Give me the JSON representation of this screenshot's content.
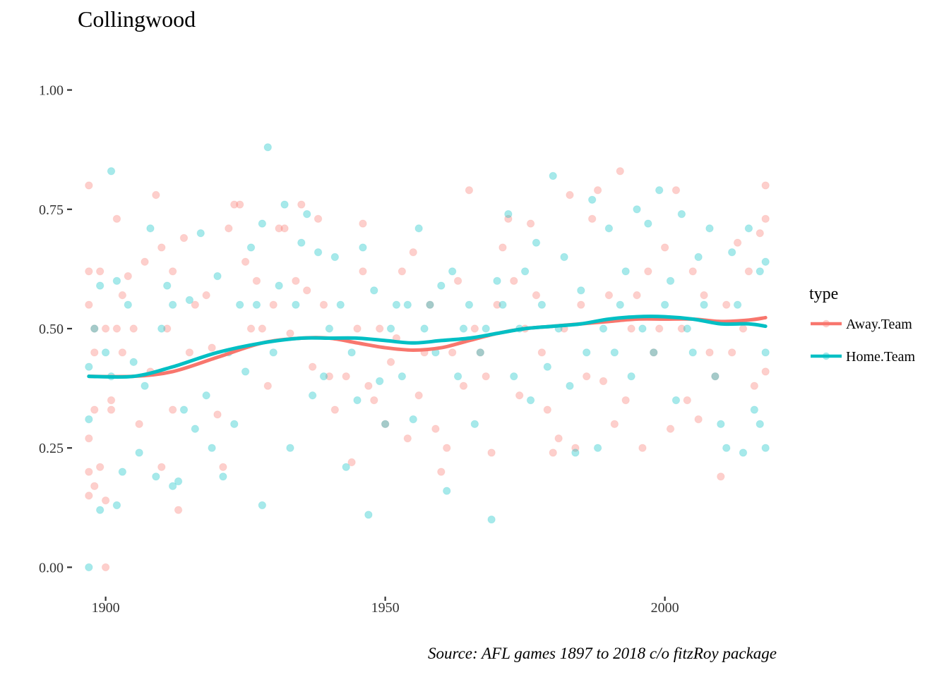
{
  "chart_data": {
    "type": "scatter",
    "title": "Collingwood",
    "caption": "Source: AFL games 1897 to 2018 c/o fitzRoy package",
    "xlabel": "",
    "ylabel": "",
    "xlim": [
      1895,
      2020
    ],
    "ylim": [
      0,
      1.0
    ],
    "x_ticks": [
      1900,
      1950,
      2000
    ],
    "x_tick_labels": [
      "1900",
      "1950",
      "2000"
    ],
    "y_ticks": [
      0,
      0.25,
      0.5,
      0.75,
      1.0
    ],
    "y_tick_labels": [
      "0.00",
      "0.25",
      "0.50",
      "0.75",
      "1.00"
    ],
    "grid": false,
    "legend": {
      "title": "type",
      "position": "right",
      "entries": [
        "Away.Team",
        "Home.Team"
      ]
    },
    "colors": {
      "Away.Team": "#F8766D",
      "Home.Team": "#00BFC4"
    },
    "point_opacity": 0.35,
    "series": [
      {
        "name": "Away.Team",
        "smooth": {
          "x": [
            1897,
            1905,
            1912,
            1920,
            1928,
            1935,
            1940,
            1945,
            1950,
            1955,
            1960,
            1965,
            1970,
            1975,
            1980,
            1985,
            1990,
            1995,
            2000,
            2005,
            2010,
            2015,
            2018
          ],
          "y": [
            0.4,
            0.4,
            0.41,
            0.44,
            0.47,
            0.48,
            0.48,
            0.47,
            0.46,
            0.455,
            0.46,
            0.475,
            0.49,
            0.5,
            0.505,
            0.51,
            0.515,
            0.52,
            0.52,
            0.52,
            0.515,
            0.518,
            0.523
          ]
        },
        "points": [
          [
            1897,
            0.8
          ],
          [
            1897,
            0.62
          ],
          [
            1897,
            0.55
          ],
          [
            1897,
            0.27
          ],
          [
            1897,
            0.2
          ],
          [
            1897,
            0.15
          ],
          [
            1898,
            0.45
          ],
          [
            1898,
            0.17
          ],
          [
            1898,
            0.5
          ],
          [
            1898,
            0.33
          ],
          [
            1899,
            0.62
          ],
          [
            1899,
            0.21
          ],
          [
            1900,
            0.0
          ],
          [
            1900,
            0.14
          ],
          [
            1900,
            0.5
          ],
          [
            1901,
            0.33
          ],
          [
            1901,
            0.35
          ],
          [
            1902,
            0.73
          ],
          [
            1902,
            0.5
          ],
          [
            1903,
            0.57
          ],
          [
            1903,
            0.45
          ],
          [
            1904,
            0.61
          ],
          [
            1905,
            0.5
          ],
          [
            1906,
            0.3
          ],
          [
            1907,
            0.64
          ],
          [
            1908,
            0.41
          ],
          [
            1909,
            0.78
          ],
          [
            1910,
            0.67
          ],
          [
            1910,
            0.21
          ],
          [
            1911,
            0.5
          ],
          [
            1912,
            0.62
          ],
          [
            1912,
            0.33
          ],
          [
            1913,
            0.12
          ],
          [
            1914,
            0.69
          ],
          [
            1915,
            0.45
          ],
          [
            1916,
            0.55
          ],
          [
            1918,
            0.57
          ],
          [
            1919,
            0.46
          ],
          [
            1920,
            0.32
          ],
          [
            1921,
            0.21
          ],
          [
            1922,
            0.71
          ],
          [
            1923,
            0.76
          ],
          [
            1924,
            0.76
          ],
          [
            1925,
            0.64
          ],
          [
            1926,
            0.5
          ],
          [
            1927,
            0.6
          ],
          [
            1928,
            0.5
          ],
          [
            1929,
            0.38
          ],
          [
            1930,
            0.55
          ],
          [
            1931,
            0.71
          ],
          [
            1932,
            0.71
          ],
          [
            1933,
            0.49
          ],
          [
            1934,
            0.6
          ],
          [
            1935,
            0.76
          ],
          [
            1936,
            0.58
          ],
          [
            1937,
            0.42
          ],
          [
            1938,
            0.73
          ],
          [
            1939,
            0.55
          ],
          [
            1940,
            0.4
          ],
          [
            1941,
            0.33
          ],
          [
            1943,
            0.4
          ],
          [
            1944,
            0.22
          ],
          [
            1945,
            0.5
          ],
          [
            1946,
            0.72
          ],
          [
            1946,
            0.62
          ],
          [
            1947,
            0.38
          ],
          [
            1948,
            0.35
          ],
          [
            1949,
            0.5
          ],
          [
            1950,
            0.3
          ],
          [
            1951,
            0.43
          ],
          [
            1952,
            0.48
          ],
          [
            1953,
            0.62
          ],
          [
            1954,
            0.27
          ],
          [
            1955,
            0.66
          ],
          [
            1956,
            0.36
          ],
          [
            1957,
            0.45
          ],
          [
            1958,
            0.55
          ],
          [
            1959,
            0.29
          ],
          [
            1960,
            0.2
          ],
          [
            1961,
            0.25
          ],
          [
            1962,
            0.45
          ],
          [
            1963,
            0.6
          ],
          [
            1964,
            0.38
          ],
          [
            1965,
            0.79
          ],
          [
            1966,
            0.5
          ],
          [
            1967,
            0.45
          ],
          [
            1968,
            0.4
          ],
          [
            1969,
            0.24
          ],
          [
            1970,
            0.55
          ],
          [
            1971,
            0.67
          ],
          [
            1972,
            0.73
          ],
          [
            1973,
            0.6
          ],
          [
            1974,
            0.36
          ],
          [
            1975,
            0.5
          ],
          [
            1976,
            0.72
          ],
          [
            1977,
            0.57
          ],
          [
            1978,
            0.45
          ],
          [
            1979,
            0.33
          ],
          [
            1980,
            0.24
          ],
          [
            1981,
            0.27
          ],
          [
            1982,
            0.5
          ],
          [
            1983,
            0.78
          ],
          [
            1984,
            0.25
          ],
          [
            1985,
            0.55
          ],
          [
            1986,
            0.4
          ],
          [
            1987,
            0.73
          ],
          [
            1988,
            0.79
          ],
          [
            1989,
            0.39
          ],
          [
            1990,
            0.57
          ],
          [
            1991,
            0.3
          ],
          [
            1992,
            0.83
          ],
          [
            1993,
            0.35
          ],
          [
            1994,
            0.5
          ],
          [
            1995,
            0.57
          ],
          [
            1996,
            0.25
          ],
          [
            1997,
            0.62
          ],
          [
            1998,
            0.45
          ],
          [
            1999,
            0.5
          ],
          [
            2000,
            0.67
          ],
          [
            2001,
            0.29
          ],
          [
            2002,
            0.79
          ],
          [
            2003,
            0.5
          ],
          [
            2004,
            0.35
          ],
          [
            2005,
            0.62
          ],
          [
            2006,
            0.31
          ],
          [
            2007,
            0.57
          ],
          [
            2008,
            0.45
          ],
          [
            2009,
            0.4
          ],
          [
            2010,
            0.19
          ],
          [
            2011,
            0.55
          ],
          [
            2012,
            0.45
          ],
          [
            2013,
            0.68
          ],
          [
            2014,
            0.5
          ],
          [
            2015,
            0.62
          ],
          [
            2016,
            0.38
          ],
          [
            2017,
            0.7
          ],
          [
            2018,
            0.8
          ],
          [
            2018,
            0.73
          ],
          [
            2018,
            0.41
          ]
        ]
      },
      {
        "name": "Home.Team",
        "smooth": {
          "x": [
            1897,
            1905,
            1912,
            1920,
            1928,
            1935,
            1940,
            1945,
            1950,
            1955,
            1960,
            1965,
            1970,
            1975,
            1980,
            1985,
            1990,
            1995,
            2000,
            2005,
            2010,
            2015,
            2018
          ],
          "y": [
            0.4,
            0.4,
            0.42,
            0.45,
            0.47,
            0.48,
            0.48,
            0.48,
            0.475,
            0.47,
            0.475,
            0.48,
            0.49,
            0.5,
            0.505,
            0.51,
            0.52,
            0.525,
            0.525,
            0.52,
            0.51,
            0.51,
            0.505
          ]
        },
        "points": [
          [
            1897,
            0.0
          ],
          [
            1897,
            0.31
          ],
          [
            1897,
            0.42
          ],
          [
            1898,
            0.5
          ],
          [
            1899,
            0.12
          ],
          [
            1899,
            0.59
          ],
          [
            1900,
            0.45
          ],
          [
            1901,
            0.83
          ],
          [
            1901,
            0.4
          ],
          [
            1902,
            0.13
          ],
          [
            1902,
            0.6
          ],
          [
            1903,
            0.2
          ],
          [
            1904,
            0.55
          ],
          [
            1905,
            0.43
          ],
          [
            1906,
            0.24
          ],
          [
            1907,
            0.38
          ],
          [
            1908,
            0.71
          ],
          [
            1909,
            0.19
          ],
          [
            1910,
            0.5
          ],
          [
            1911,
            0.59
          ],
          [
            1912,
            0.17
          ],
          [
            1912,
            0.55
          ],
          [
            1913,
            0.18
          ],
          [
            1914,
            0.33
          ],
          [
            1915,
            0.56
          ],
          [
            1916,
            0.29
          ],
          [
            1917,
            0.7
          ],
          [
            1918,
            0.36
          ],
          [
            1919,
            0.25
          ],
          [
            1920,
            0.61
          ],
          [
            1921,
            0.19
          ],
          [
            1922,
            0.45
          ],
          [
            1923,
            0.3
          ],
          [
            1924,
            0.55
          ],
          [
            1925,
            0.41
          ],
          [
            1926,
            0.67
          ],
          [
            1927,
            0.55
          ],
          [
            1928,
            0.13
          ],
          [
            1928,
            0.72
          ],
          [
            1929,
            0.88
          ],
          [
            1930,
            0.45
          ],
          [
            1931,
            0.59
          ],
          [
            1932,
            0.76
          ],
          [
            1933,
            0.25
          ],
          [
            1934,
            0.55
          ],
          [
            1935,
            0.68
          ],
          [
            1936,
            0.74
          ],
          [
            1937,
            0.36
          ],
          [
            1938,
            0.66
          ],
          [
            1939,
            0.4
          ],
          [
            1940,
            0.5
          ],
          [
            1941,
            0.65
          ],
          [
            1942,
            0.55
          ],
          [
            1943,
            0.21
          ],
          [
            1944,
            0.45
          ],
          [
            1945,
            0.35
          ],
          [
            1946,
            0.67
          ],
          [
            1947,
            0.11
          ],
          [
            1948,
            0.58
          ],
          [
            1949,
            0.39
          ],
          [
            1950,
            0.3
          ],
          [
            1951,
            0.5
          ],
          [
            1952,
            0.55
          ],
          [
            1953,
            0.4
          ],
          [
            1954,
            0.55
          ],
          [
            1955,
            0.31
          ],
          [
            1956,
            0.71
          ],
          [
            1957,
            0.5
          ],
          [
            1958,
            0.55
          ],
          [
            1959,
            0.45
          ],
          [
            1960,
            0.59
          ],
          [
            1961,
            0.16
          ],
          [
            1962,
            0.62
          ],
          [
            1963,
            0.4
          ],
          [
            1964,
            0.5
          ],
          [
            1965,
            0.55
          ],
          [
            1966,
            0.3
          ],
          [
            1967,
            0.45
          ],
          [
            1968,
            0.5
          ],
          [
            1969,
            0.1
          ],
          [
            1970,
            0.6
          ],
          [
            1971,
            0.55
          ],
          [
            1972,
            0.74
          ],
          [
            1973,
            0.4
          ],
          [
            1974,
            0.5
          ],
          [
            1975,
            0.62
          ],
          [
            1976,
            0.35
          ],
          [
            1977,
            0.68
          ],
          [
            1978,
            0.55
          ],
          [
            1979,
            0.42
          ],
          [
            1980,
            0.82
          ],
          [
            1981,
            0.5
          ],
          [
            1982,
            0.65
          ],
          [
            1983,
            0.38
          ],
          [
            1984,
            0.24
          ],
          [
            1985,
            0.58
          ],
          [
            1986,
            0.45
          ],
          [
            1987,
            0.77
          ],
          [
            1988,
            0.25
          ],
          [
            1989,
            0.5
          ],
          [
            1990,
            0.71
          ],
          [
            1991,
            0.45
          ],
          [
            1992,
            0.55
          ],
          [
            1993,
            0.62
          ],
          [
            1994,
            0.4
          ],
          [
            1995,
            0.75
          ],
          [
            1996,
            0.5
          ],
          [
            1997,
            0.72
          ],
          [
            1998,
            0.45
          ],
          [
            1999,
            0.79
          ],
          [
            2000,
            0.55
          ],
          [
            2001,
            0.6
          ],
          [
            2002,
            0.35
          ],
          [
            2003,
            0.74
          ],
          [
            2004,
            0.5
          ],
          [
            2005,
            0.45
          ],
          [
            2006,
            0.65
          ],
          [
            2007,
            0.55
          ],
          [
            2008,
            0.71
          ],
          [
            2009,
            0.4
          ],
          [
            2010,
            0.3
          ],
          [
            2011,
            0.25
          ],
          [
            2012,
            0.66
          ],
          [
            2013,
            0.55
          ],
          [
            2014,
            0.24
          ],
          [
            2015,
            0.71
          ],
          [
            2016,
            0.33
          ],
          [
            2017,
            0.3
          ],
          [
            2017,
            0.62
          ],
          [
            2018,
            0.64
          ],
          [
            2018,
            0.25
          ],
          [
            2018,
            0.45
          ]
        ]
      }
    ]
  }
}
